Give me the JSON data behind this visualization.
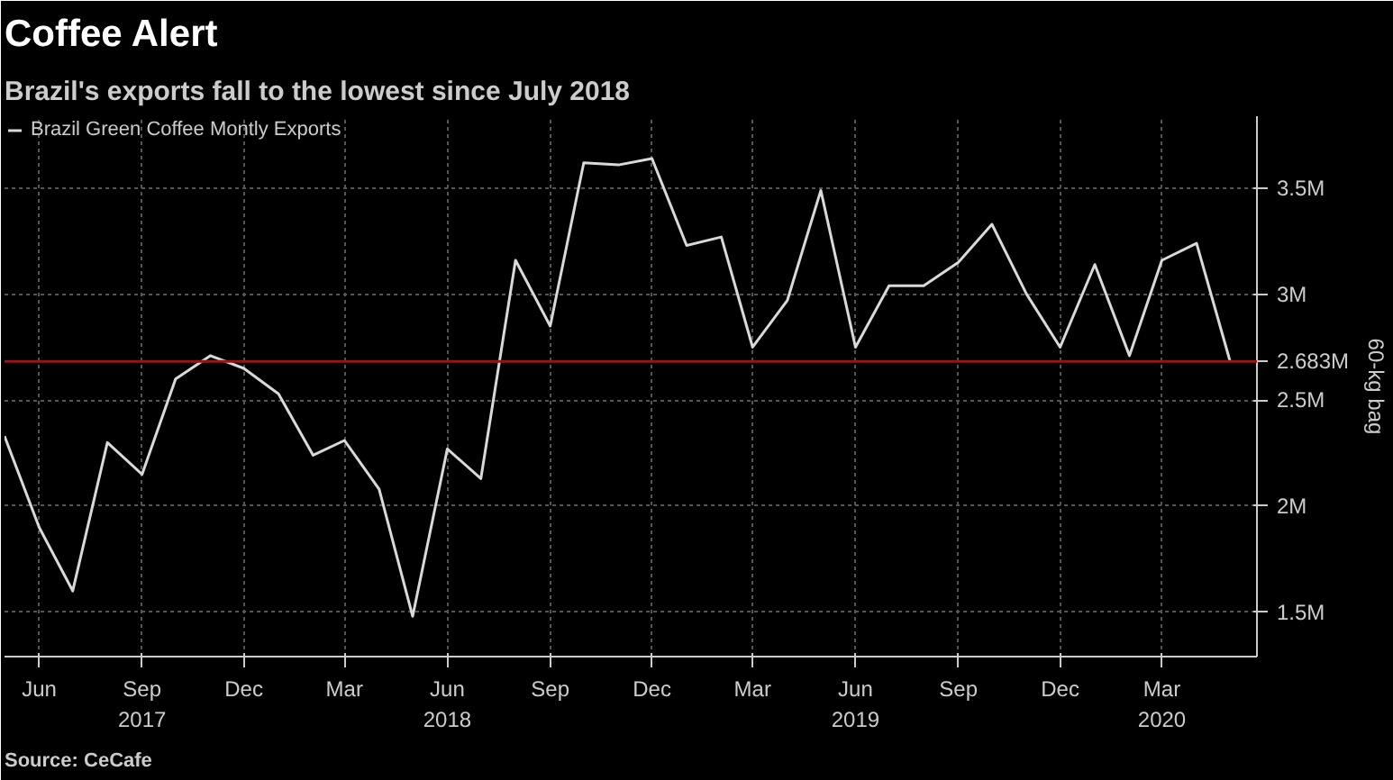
{
  "chart_data": {
    "type": "line",
    "title": "Coffee Alert",
    "subtitle": "Brazil's exports fall to the lowest since July 2018",
    "ylabel": "60-kg bag",
    "annotations": [
      "Source: CeCafe"
    ],
    "x": [
      "2017-05",
      "2017-06",
      "2017-07",
      "2017-08",
      "2017-09",
      "2017-10",
      "2017-11",
      "2017-12",
      "2018-01",
      "2018-02",
      "2018-03",
      "2018-04",
      "2018-05",
      "2018-06",
      "2018-07",
      "2018-08",
      "2018-09",
      "2018-10",
      "2018-11",
      "2018-12",
      "2019-01",
      "2019-02",
      "2019-03",
      "2019-04",
      "2019-05",
      "2019-06",
      "2019-07",
      "2019-08",
      "2019-09",
      "2019-10",
      "2019-11",
      "2019-12",
      "2020-01",
      "2020-02",
      "2020-03",
      "2020-04",
      "2020-05"
    ],
    "series": [
      {
        "name": "Brazil Green Coffee Montly Exports",
        "color": "#d9d9d9",
        "values": [
          2.33,
          1.9,
          1.6,
          2.3,
          2.15,
          2.6,
          2.71,
          2.65,
          2.53,
          2.24,
          2.31,
          2.08,
          1.48,
          2.27,
          2.13,
          3.16,
          2.85,
          3.62,
          3.61,
          3.64,
          3.23,
          3.27,
          2.75,
          2.97,
          3.49,
          2.75,
          3.04,
          3.04,
          3.15,
          3.33,
          3.0,
          2.75,
          3.14,
          2.71,
          3.16,
          3.24,
          2.683
        ]
      }
    ],
    "xlim": [
      "2017-05-01",
      "2020-05-25"
    ],
    "ylim": [
      1.29,
      3.84
    ],
    "xticks": [
      {
        "value": "2017-06",
        "label": "Jun"
      },
      {
        "value": "2017-09",
        "label": "Sep\n2017"
      },
      {
        "value": "2017-12",
        "label": "Dec"
      },
      {
        "value": "2018-03",
        "label": "Mar"
      },
      {
        "value": "2018-06",
        "label": "Jun\n2018"
      },
      {
        "value": "2018-09",
        "label": "Sep"
      },
      {
        "value": "2018-12",
        "label": "Dec"
      },
      {
        "value": "2019-03",
        "label": "Mar"
      },
      {
        "value": "2019-06",
        "label": "Jun\n2019"
      },
      {
        "value": "2019-09",
        "label": "Sep"
      },
      {
        "value": "2019-12",
        "label": "Dec"
      },
      {
        "value": "2020-03",
        "label": "Mar\n2020"
      }
    ],
    "yticks": [
      {
        "value": 1.5,
        "label": "1.5M"
      },
      {
        "value": 2,
        "label": "2M"
      },
      {
        "value": 2.5,
        "label": "2.5M"
      },
      {
        "value": 3,
        "label": "3M"
      },
      {
        "value": 3.5,
        "label": "3.5M"
      }
    ],
    "ref_lines": [
      {
        "axis": "y",
        "value": 2.683,
        "label": "2.683M",
        "color": "#8b1a1a"
      }
    ],
    "grid": true,
    "legend": "top left",
    "line_style": "solid"
  }
}
